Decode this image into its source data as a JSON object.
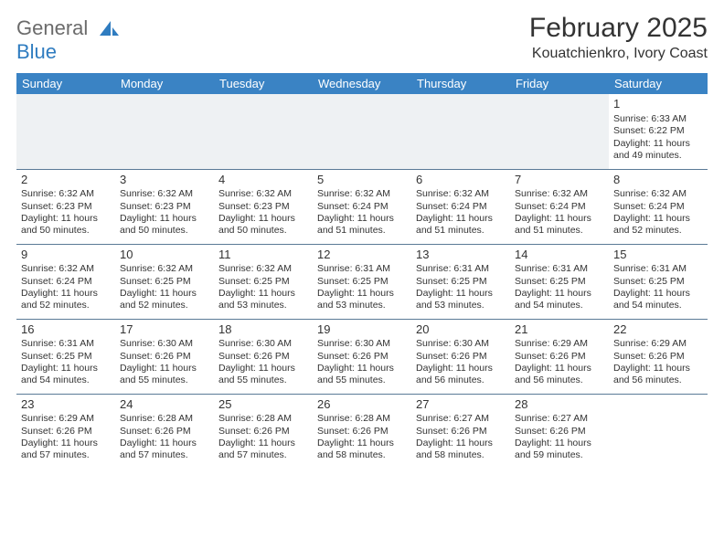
{
  "logo": {
    "line1": "General",
    "line2": "Blue"
  },
  "title": "February 2025",
  "location": "Kouatchienkro, Ivory Coast",
  "colors": {
    "header_bg": "#3a83c4",
    "header_fg": "#ffffff",
    "logo_gray": "#6b6b6b",
    "logo_blue": "#2f7cc0",
    "cell_border": "#5a7a96",
    "blank_bg": "#eef1f3",
    "text": "#333333"
  },
  "day_headers": [
    "Sunday",
    "Monday",
    "Tuesday",
    "Wednesday",
    "Thursday",
    "Friday",
    "Saturday"
  ],
  "weeks": [
    [
      {
        "blank": true
      },
      {
        "blank": true
      },
      {
        "blank": true
      },
      {
        "blank": true
      },
      {
        "blank": true
      },
      {
        "blank": true
      },
      {
        "day": "1",
        "sunrise": "6:33 AM",
        "sunset": "6:22 PM",
        "daylight": "11 hours and 49 minutes."
      }
    ],
    [
      {
        "day": "2",
        "sunrise": "6:32 AM",
        "sunset": "6:23 PM",
        "daylight": "11 hours and 50 minutes."
      },
      {
        "day": "3",
        "sunrise": "6:32 AM",
        "sunset": "6:23 PM",
        "daylight": "11 hours and 50 minutes."
      },
      {
        "day": "4",
        "sunrise": "6:32 AM",
        "sunset": "6:23 PM",
        "daylight": "11 hours and 50 minutes."
      },
      {
        "day": "5",
        "sunrise": "6:32 AM",
        "sunset": "6:24 PM",
        "daylight": "11 hours and 51 minutes."
      },
      {
        "day": "6",
        "sunrise": "6:32 AM",
        "sunset": "6:24 PM",
        "daylight": "11 hours and 51 minutes."
      },
      {
        "day": "7",
        "sunrise": "6:32 AM",
        "sunset": "6:24 PM",
        "daylight": "11 hours and 51 minutes."
      },
      {
        "day": "8",
        "sunrise": "6:32 AM",
        "sunset": "6:24 PM",
        "daylight": "11 hours and 52 minutes."
      }
    ],
    [
      {
        "day": "9",
        "sunrise": "6:32 AM",
        "sunset": "6:24 PM",
        "daylight": "11 hours and 52 minutes."
      },
      {
        "day": "10",
        "sunrise": "6:32 AM",
        "sunset": "6:25 PM",
        "daylight": "11 hours and 52 minutes."
      },
      {
        "day": "11",
        "sunrise": "6:32 AM",
        "sunset": "6:25 PM",
        "daylight": "11 hours and 53 minutes."
      },
      {
        "day": "12",
        "sunrise": "6:31 AM",
        "sunset": "6:25 PM",
        "daylight": "11 hours and 53 minutes."
      },
      {
        "day": "13",
        "sunrise": "6:31 AM",
        "sunset": "6:25 PM",
        "daylight": "11 hours and 53 minutes."
      },
      {
        "day": "14",
        "sunrise": "6:31 AM",
        "sunset": "6:25 PM",
        "daylight": "11 hours and 54 minutes."
      },
      {
        "day": "15",
        "sunrise": "6:31 AM",
        "sunset": "6:25 PM",
        "daylight": "11 hours and 54 minutes."
      }
    ],
    [
      {
        "day": "16",
        "sunrise": "6:31 AM",
        "sunset": "6:25 PM",
        "daylight": "11 hours and 54 minutes."
      },
      {
        "day": "17",
        "sunrise": "6:30 AM",
        "sunset": "6:26 PM",
        "daylight": "11 hours and 55 minutes."
      },
      {
        "day": "18",
        "sunrise": "6:30 AM",
        "sunset": "6:26 PM",
        "daylight": "11 hours and 55 minutes."
      },
      {
        "day": "19",
        "sunrise": "6:30 AM",
        "sunset": "6:26 PM",
        "daylight": "11 hours and 55 minutes."
      },
      {
        "day": "20",
        "sunrise": "6:30 AM",
        "sunset": "6:26 PM",
        "daylight": "11 hours and 56 minutes."
      },
      {
        "day": "21",
        "sunrise": "6:29 AM",
        "sunset": "6:26 PM",
        "daylight": "11 hours and 56 minutes."
      },
      {
        "day": "22",
        "sunrise": "6:29 AM",
        "sunset": "6:26 PM",
        "daylight": "11 hours and 56 minutes."
      }
    ],
    [
      {
        "day": "23",
        "sunrise": "6:29 AM",
        "sunset": "6:26 PM",
        "daylight": "11 hours and 57 minutes."
      },
      {
        "day": "24",
        "sunrise": "6:28 AM",
        "sunset": "6:26 PM",
        "daylight": "11 hours and 57 minutes."
      },
      {
        "day": "25",
        "sunrise": "6:28 AM",
        "sunset": "6:26 PM",
        "daylight": "11 hours and 57 minutes."
      },
      {
        "day": "26",
        "sunrise": "6:28 AM",
        "sunset": "6:26 PM",
        "daylight": "11 hours and 58 minutes."
      },
      {
        "day": "27",
        "sunrise": "6:27 AM",
        "sunset": "6:26 PM",
        "daylight": "11 hours and 58 minutes."
      },
      {
        "day": "28",
        "sunrise": "6:27 AM",
        "sunset": "6:26 PM",
        "daylight": "11 hours and 59 minutes."
      },
      {
        "blank": true
      }
    ]
  ],
  "labels": {
    "sunrise": "Sunrise:",
    "sunset": "Sunset:",
    "daylight": "Daylight:"
  }
}
